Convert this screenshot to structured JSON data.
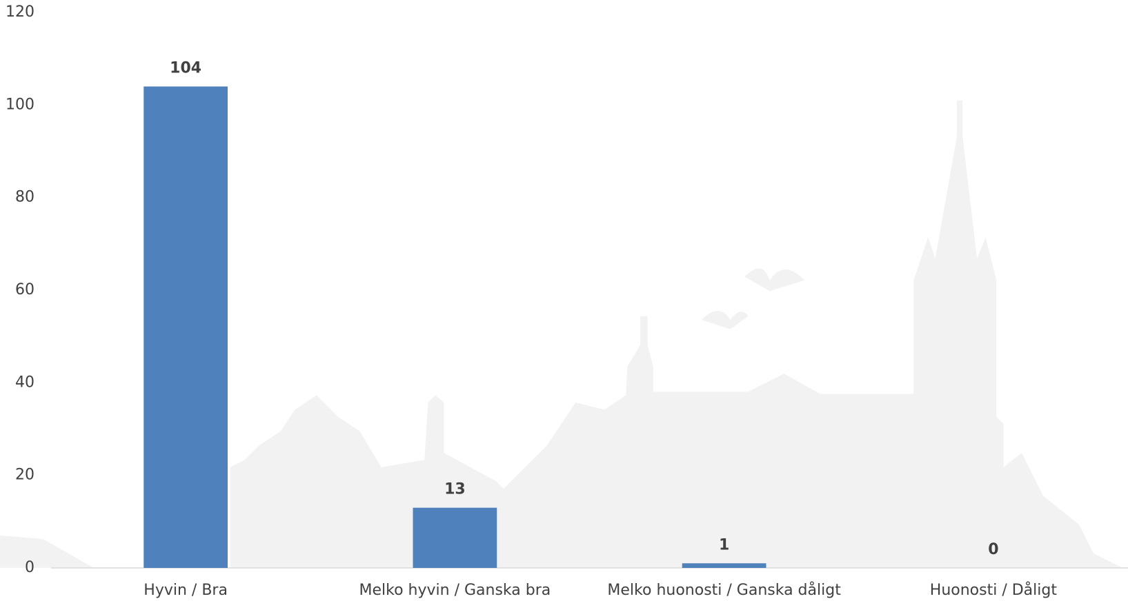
{
  "chart_data": {
    "type": "bar",
    "categories": [
      "Hyvin / Bra",
      "Melko hyvin / Ganska bra",
      "Melko huonosti / Ganska dåligt",
      "Huonosti / Dåligt"
    ],
    "values": [
      104,
      13,
      1,
      0
    ],
    "color": "#4f81bd",
    "ylim": [
      0,
      120
    ],
    "yticks": [
      0,
      20,
      40,
      60,
      80,
      100,
      120
    ],
    "grid": false
  }
}
